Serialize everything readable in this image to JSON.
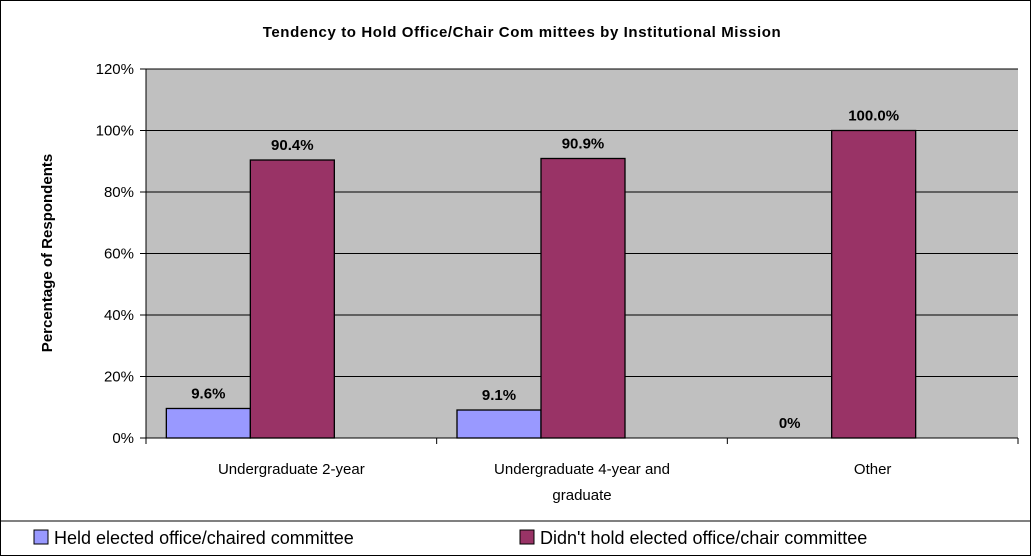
{
  "chart_data": {
    "type": "bar",
    "title": "Tendency to Hold Office/Chair Com mittees by Institutional Mission",
    "ylabel": "Percentage of Respondents",
    "xlabel": "",
    "categories": [
      [
        "Undergraduate 2-year"
      ],
      [
        "Undergraduate 4-year and",
        "graduate"
      ],
      [
        "Other"
      ]
    ],
    "ylim": [
      0,
      120
    ],
    "yticks": [
      0,
      20,
      40,
      60,
      80,
      100,
      120
    ],
    "ytick_labels": [
      "0%",
      "20%",
      "40%",
      "60%",
      "80%",
      "100%",
      "120%"
    ],
    "grid": true,
    "legend_position": "bottom",
    "series": [
      {
        "name": "Held elected office/chaired committee",
        "color": "#9999ff",
        "values": [
          9.6,
          9.1,
          0
        ],
        "labels": [
          "9.6%",
          "9.1%",
          "0%"
        ]
      },
      {
        "name": "Didn't hold elected office/chair committee",
        "color": "#993366",
        "values": [
          90.4,
          90.9,
          100.0
        ],
        "labels": [
          "90.4%",
          "90.9%",
          "100.0%"
        ]
      }
    ],
    "plot_background": "#c0c0c0"
  }
}
